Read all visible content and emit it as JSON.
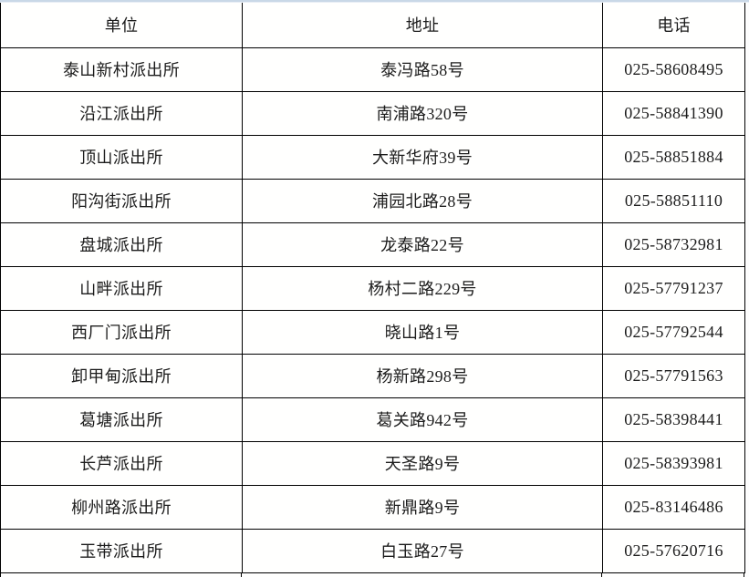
{
  "page": {
    "top_strip_color": "#c9d8e7",
    "grid_border_color": "#000000",
    "cell_background": "#fffffe",
    "text_color": "#1c1c1c"
  },
  "table": {
    "headers": [
      "单位",
      "地址",
      "电话"
    ],
    "rows": [
      {
        "unit": "泰山新村派出所",
        "address": "泰冯路58号",
        "phone": "025-58608495"
      },
      {
        "unit": "沿江派出所",
        "address": "南浦路320号",
        "phone": "025-58841390"
      },
      {
        "unit": "顶山派出所",
        "address": "大新华府39号",
        "phone": "025-58851884"
      },
      {
        "unit": "阳沟街派出所",
        "address": "浦园北路28号",
        "phone": "025-58851110"
      },
      {
        "unit": "盘城派出所",
        "address": "龙泰路22号",
        "phone": "025-58732981"
      },
      {
        "unit": "山畔派出所",
        "address": "杨村二路229号",
        "phone": "025-57791237"
      },
      {
        "unit": "西厂门派出所",
        "address": "晓山路1号",
        "phone": "025-57792544"
      },
      {
        "unit": "卸甲甸派出所",
        "address": "杨新路298号",
        "phone": "025-57791563"
      },
      {
        "unit": "葛塘派出所",
        "address": "葛关路942号",
        "phone": "025-58398441"
      },
      {
        "unit": "长芦派出所",
        "address": "天圣路9号",
        "phone": "025-58393981"
      },
      {
        "unit": "柳州路派出所",
        "address": "新鼎路9号",
        "phone": "025-83146486"
      },
      {
        "unit": "玉带派出所",
        "address": "白玉路27号",
        "phone": "025-57620716"
      }
    ]
  }
}
